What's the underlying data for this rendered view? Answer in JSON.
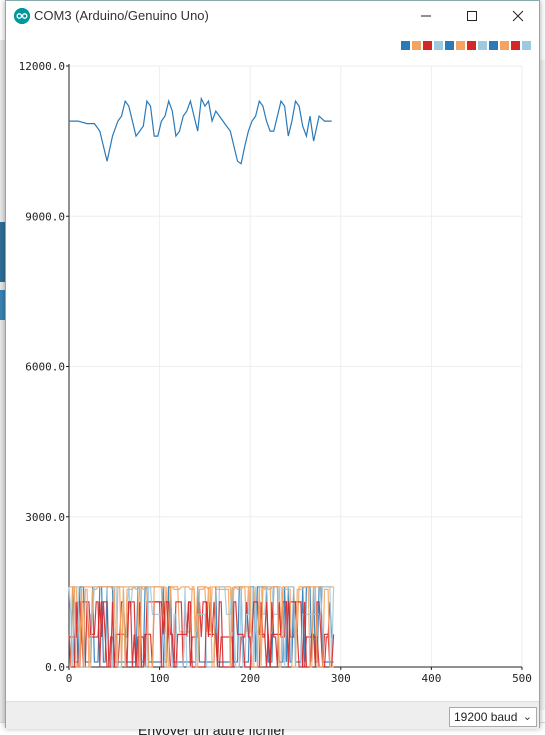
{
  "window": {
    "title": "COM3 (Arduino/Genuino Uno)"
  },
  "background_app": {
    "bottom_text": "Envoyer un autre fichier"
  },
  "legend": {
    "swatches": [
      "#2a7ab8",
      "#f4a460",
      "#d62728",
      "#9ecae1",
      "#2a7ab8",
      "#f4a460",
      "#d62728",
      "#9ecae1",
      "#2a7ab8",
      "#f4a460",
      "#d62728",
      "#9ecae1"
    ]
  },
  "statusbar": {
    "baud_label": "19200 baud"
  },
  "chart_data": {
    "type": "line",
    "ylim": [
      0,
      12000
    ],
    "xlim": [
      0,
      500
    ],
    "y_ticks": [
      "0.0",
      "3000.0",
      "6000.0",
      "9000.0",
      "12000.0"
    ],
    "x_ticks": [
      "0",
      "100",
      "200",
      "300",
      "400",
      "500"
    ],
    "grid": true,
    "series": [
      {
        "color": "#2a7ab8",
        "x": [
          0,
          10,
          20,
          28,
          34,
          38,
          42,
          48,
          54,
          58,
          62,
          66,
          70,
          74,
          78,
          82,
          86,
          90,
          94,
          98,
          102,
          106,
          110,
          114,
          118,
          122,
          126,
          130,
          134,
          138,
          142,
          146,
          150,
          154,
          158,
          162,
          166,
          170,
          174,
          178,
          182,
          186,
          190,
          194,
          198,
          202,
          206,
          210,
          214,
          218,
          222,
          226,
          230,
          234,
          238,
          242,
          246,
          250,
          254,
          258,
          262,
          266,
          270,
          276,
          282,
          290
        ],
        "y": [
          10900,
          10900,
          10850,
          10850,
          10700,
          10400,
          10100,
          10600,
          10900,
          11000,
          11300,
          11200,
          10900,
          10600,
          10700,
          10800,
          11300,
          11200,
          10600,
          10600,
          10900,
          11000,
          11300,
          11100,
          10600,
          10700,
          11000,
          11100,
          11300,
          11000,
          10700,
          11350,
          11200,
          11300,
          10900,
          11100,
          11000,
          10900,
          10800,
          10700,
          10400,
          10100,
          10050,
          10400,
          10700,
          10900,
          11000,
          11300,
          11200,
          10900,
          10700,
          10700,
          11000,
          11300,
          11200,
          10600,
          10900,
          11300,
          11200,
          10800,
          10600,
          11000,
          10500,
          11000,
          10900,
          10900
        ]
      }
    ],
    "noise_series": [
      {
        "color": "#2a7ab8",
        "low": 100,
        "high": 1600,
        "base": 100
      },
      {
        "color": "#f4a460",
        "low": 700,
        "high": 1600,
        "base": 1600
      },
      {
        "color": "#d62728",
        "low": 0,
        "high": 1300,
        "base": 600
      },
      {
        "color": "#9ecae1",
        "low": 0,
        "high": 1600,
        "base": 1050
      },
      {
        "color": "#d62728",
        "low": 0,
        "high": 1300,
        "base": 650
      },
      {
        "color": "#f4a460",
        "low": 0,
        "high": 1600,
        "base": 1550
      }
    ],
    "noise_x_range": [
      0,
      292
    ]
  }
}
